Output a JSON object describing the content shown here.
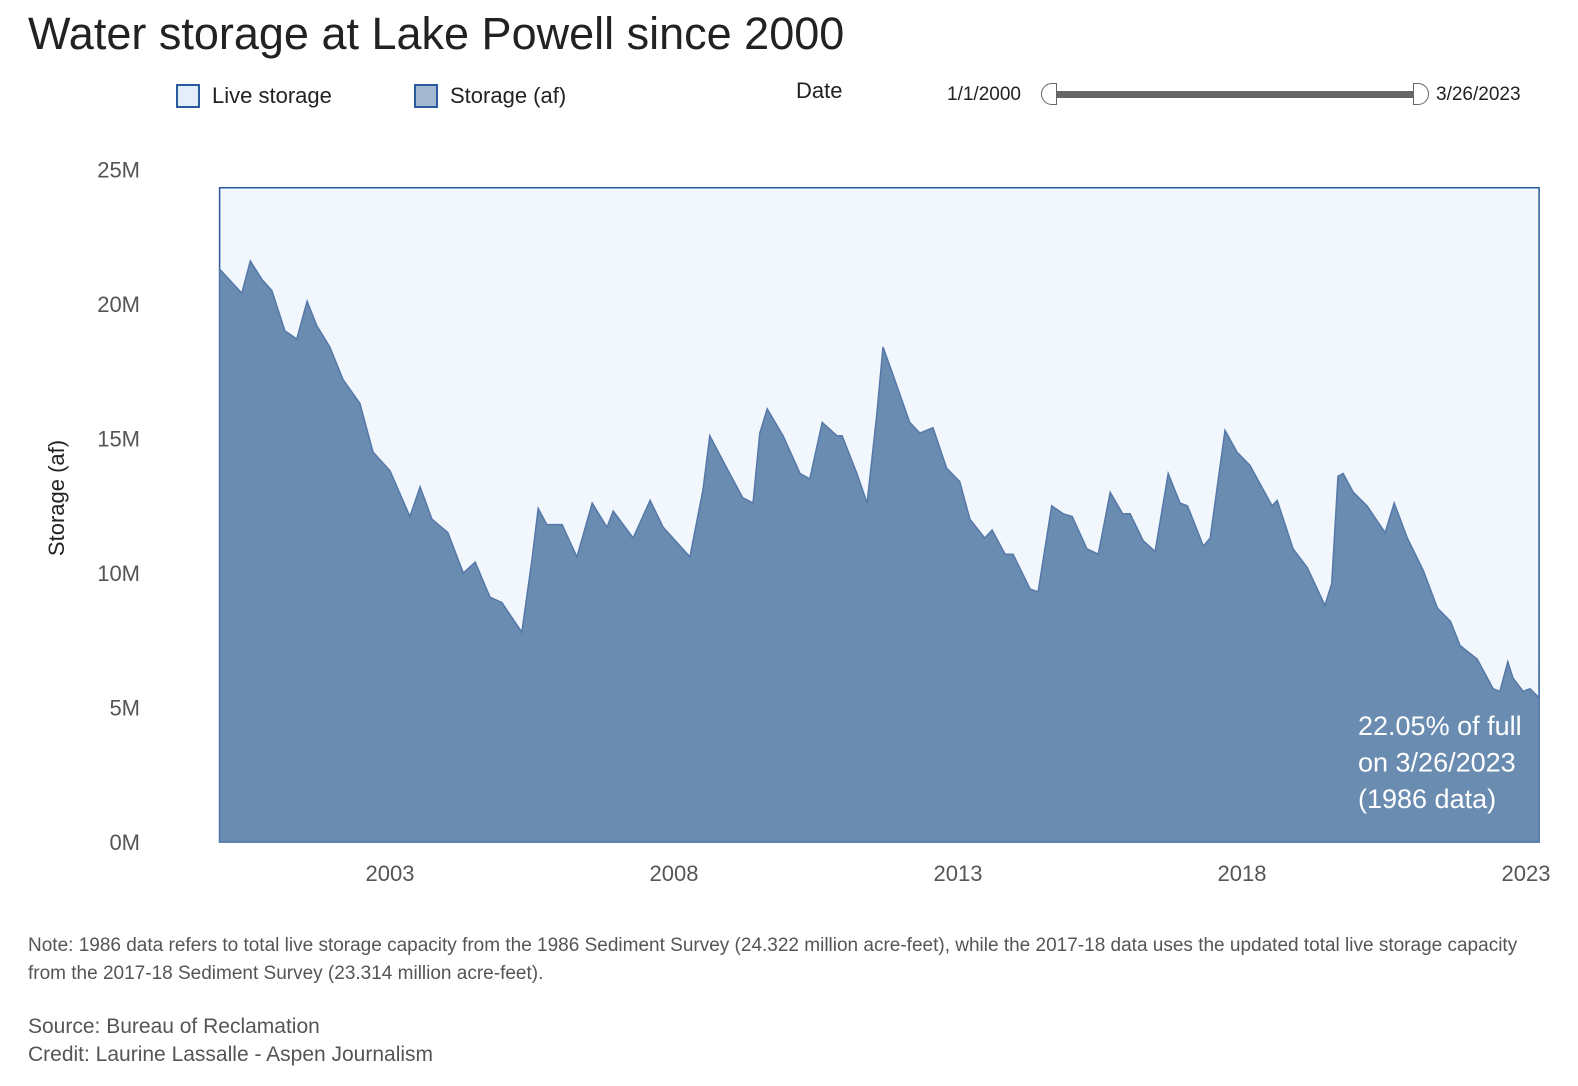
{
  "title": "Water storage at Lake Powell since 2000",
  "legend": [
    {
      "label": "Live storage",
      "color": "#e3eef9"
    },
    {
      "label": "Storage (af)",
      "color": "#a4b8d0"
    }
  ],
  "date_filter": {
    "label": "Date",
    "start": "1/1/2000",
    "end": "3/26/2023"
  },
  "colors": {
    "live_fill": "#f1f7fc",
    "live_stroke": "#2b5c9e",
    "storage_fill": "#6a8cb1",
    "storage_stroke": "#5578a8"
  },
  "chart_data": {
    "type": "area",
    "title": "Water storage at Lake Powell since 2000",
    "ylabel": "Storage (af)",
    "xlabel": "",
    "xlim": [
      2000.0,
      2023.23
    ],
    "ylim": [
      0,
      25
    ],
    "y_ticks": [
      {
        "v": 0,
        "label": "0M"
      },
      {
        "v": 5,
        "label": "5M"
      },
      {
        "v": 10,
        "label": "10M"
      },
      {
        "v": 15,
        "label": "15M"
      },
      {
        "v": 20,
        "label": "20M"
      },
      {
        "v": 25,
        "label": "25M"
      }
    ],
    "x_ticks": [
      {
        "v": 2003,
        "label": "2003"
      },
      {
        "v": 2008,
        "label": "2008"
      },
      {
        "v": 2013,
        "label": "2013"
      },
      {
        "v": 2018,
        "label": "2018"
      },
      {
        "v": 2023,
        "label": "2023"
      }
    ],
    "grid": false,
    "legend_position": "top-left",
    "series": [
      {
        "name": "Live storage",
        "x": [
          2000.0,
          2023.23
        ],
        "y": [
          24.322,
          24.322
        ]
      },
      {
        "name": "Storage (af)",
        "x": [
          2000.0,
          2000.39,
          2000.54,
          2000.75,
          2000.92,
          2001.15,
          2001.36,
          2001.54,
          2001.71,
          2001.94,
          2002.17,
          2002.47,
          2002.7,
          2003.0,
          2003.35,
          2003.53,
          2003.74,
          2004.02,
          2004.29,
          2004.5,
          2004.76,
          2004.97,
          2005.32,
          2005.5,
          2005.61,
          2005.76,
          2006.03,
          2006.29,
          2006.56,
          2006.82,
          2006.93,
          2007.28,
          2007.58,
          2007.81,
          2008.28,
          2008.51,
          2008.63,
          2008.93,
          2009.21,
          2009.39,
          2009.51,
          2009.64,
          2009.92,
          2010.22,
          2010.39,
          2010.61,
          2010.87,
          2010.96,
          2011.22,
          2011.4,
          2011.57,
          2011.68,
          2011.85,
          2012.15,
          2012.33,
          2012.56,
          2012.8,
          2013.03,
          2013.21,
          2013.47,
          2013.6,
          2013.83,
          2013.97,
          2014.27,
          2014.41,
          2014.65,
          2014.85,
          2015.01,
          2015.27,
          2015.47,
          2015.68,
          2015.9,
          2016.03,
          2016.26,
          2016.47,
          2016.7,
          2016.91,
          2017.04,
          2017.32,
          2017.44,
          2017.7,
          2017.91,
          2018.14,
          2018.53,
          2018.62,
          2018.9,
          2019.15,
          2019.46,
          2019.58,
          2019.69,
          2019.78,
          2019.96,
          2020.2,
          2020.52,
          2020.68,
          2020.91,
          2021.19,
          2021.44,
          2021.67,
          2021.84,
          2022.14,
          2022.42,
          2022.54,
          2022.68,
          2022.77,
          2022.95,
          2023.07,
          2023.23
        ],
        "y": [
          21.3,
          20.4,
          21.6,
          20.9,
          20.5,
          19.0,
          18.7,
          20.1,
          19.2,
          18.4,
          17.2,
          16.3,
          14.5,
          13.8,
          12.1,
          13.2,
          12.0,
          11.5,
          10.0,
          10.4,
          9.1,
          8.9,
          7.8,
          10.5,
          12.4,
          11.8,
          11.8,
          10.6,
          12.6,
          11.7,
          12.3,
          11.3,
          12.7,
          11.7,
          10.6,
          13.1,
          15.1,
          13.9,
          12.8,
          12.6,
          15.2,
          16.1,
          15.1,
          13.7,
          13.5,
          15.6,
          15.1,
          15.1,
          13.7,
          12.6,
          15.9,
          18.4,
          17.4,
          15.6,
          15.2,
          15.4,
          13.9,
          13.4,
          12.0,
          11.3,
          11.6,
          10.7,
          10.7,
          9.4,
          9.3,
          12.5,
          12.2,
          12.1,
          10.9,
          10.7,
          13.0,
          12.2,
          12.2,
          11.2,
          10.8,
          13.7,
          12.6,
          12.5,
          11.0,
          11.3,
          15.3,
          14.5,
          14.0,
          12.5,
          12.7,
          10.9,
          10.2,
          8.8,
          9.6,
          13.6,
          13.7,
          13.0,
          12.5,
          11.5,
          12.6,
          11.3,
          10.1,
          8.7,
          8.2,
          7.3,
          6.8,
          5.7,
          5.6,
          6.7,
          6.1,
          5.6,
          5.7,
          5.36
        ]
      }
    ],
    "annotation": [
      "22.05% of full",
      "on 3/26/2023",
      "(1986 data)"
    ]
  },
  "footer": {
    "note": "Note: 1986 data refers to total live storage capacity from the 1986 Sediment Survey (24.322 million acre-feet), while the 2017-18 data uses the updated total live storage capacity from the 2017-18 Sediment Survey (23.314 million acre-feet).",
    "source": "Source: Bureau of Reclamation",
    "credit": "Credit: Laurine Lassalle - Aspen Journalism"
  }
}
